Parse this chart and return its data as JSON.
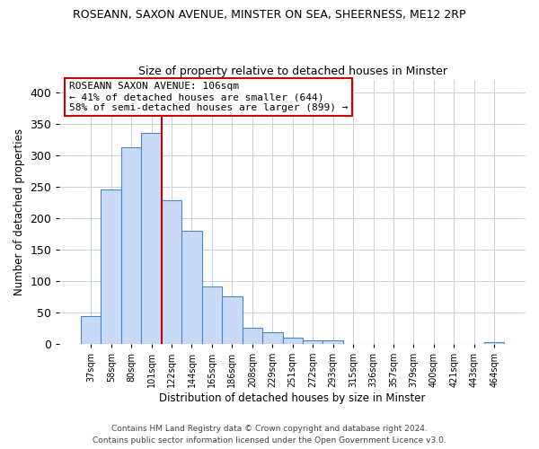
{
  "title": "ROSEANN, SAXON AVENUE, MINSTER ON SEA, SHEERNESS, ME12 2RP",
  "subtitle": "Size of property relative to detached houses in Minster",
  "xlabel": "Distribution of detached houses by size in Minster",
  "ylabel": "Number of detached properties",
  "bar_labels": [
    "37sqm",
    "58sqm",
    "80sqm",
    "101sqm",
    "122sqm",
    "144sqm",
    "165sqm",
    "186sqm",
    "208sqm",
    "229sqm",
    "251sqm",
    "272sqm",
    "293sqm",
    "315sqm",
    "336sqm",
    "357sqm",
    "379sqm",
    "400sqm",
    "421sqm",
    "443sqm",
    "464sqm"
  ],
  "bar_values": [
    44,
    245,
    313,
    335,
    228,
    180,
    91,
    75,
    25,
    18,
    10,
    5,
    5,
    0,
    0,
    0,
    0,
    0,
    0,
    0,
    3
  ],
  "bar_color": "#c9daf8",
  "bar_edge_color": "#4a86c8",
  "vline_index": 3,
  "vline_color": "#cc0000",
  "ylim": [
    0,
    420
  ],
  "yticks": [
    0,
    50,
    100,
    150,
    200,
    250,
    300,
    350,
    400
  ],
  "annotation_line1": "ROSEANN SAXON AVENUE: 106sqm",
  "annotation_line2": "← 41% of detached houses are smaller (644)",
  "annotation_line3": "58% of semi-detached houses are larger (899) →",
  "annotation_box_color": "#ffffff",
  "annotation_box_edge": "#cc0000",
  "footnote1": "Contains HM Land Registry data © Crown copyright and database right 2024.",
  "footnote2": "Contains public sector information licensed under the Open Government Licence v3.0.",
  "background_color": "#ffffff",
  "grid_color": "#c8d0e0"
}
